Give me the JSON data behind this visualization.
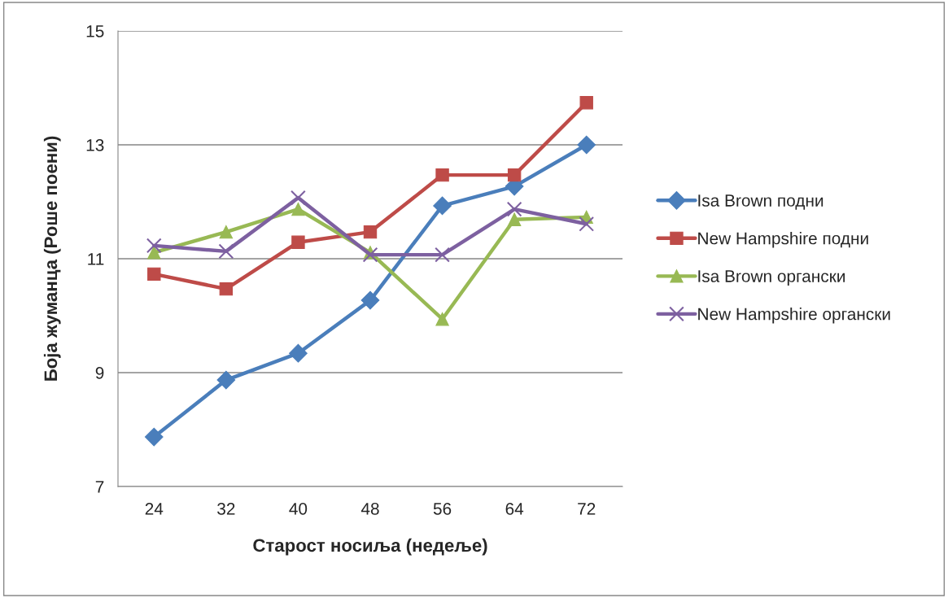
{
  "chart_data": {
    "type": "line",
    "xlabel": "Старост носиља (недеље)",
    "ylabel": "Боја жуманца (Роше поени)",
    "categories": [
      "24",
      "32",
      "40",
      "48",
      "56",
      "64",
      "72"
    ],
    "series": [
      {
        "name": "Isa Brown подни",
        "color": "#4a7ebb",
        "marker": "diamond",
        "values": [
          7.87,
          8.87,
          9.34,
          10.27,
          11.93,
          12.27,
          13.0
        ]
      },
      {
        "name": "New Hampshire подни",
        "color": "#be4b48",
        "marker": "square",
        "values": [
          10.73,
          10.47,
          11.29,
          11.47,
          12.47,
          12.47,
          13.74
        ]
      },
      {
        "name": "Isa Brown органски",
        "color": "#98b954",
        "marker": "triangle",
        "values": [
          11.11,
          11.47,
          11.87,
          11.11,
          9.94,
          11.69,
          11.73
        ]
      },
      {
        "name": "New Hampshire органски",
        "color": "#7d60a0",
        "marker": "cross",
        "values": [
          11.23,
          11.13,
          12.07,
          11.07,
          11.07,
          11.87,
          11.61
        ]
      }
    ],
    "ylim": [
      7,
      15
    ],
    "yticks": [
      7,
      9,
      11,
      13,
      15
    ],
    "grid": "y",
    "legend": "right",
    "line_style": "solid"
  }
}
